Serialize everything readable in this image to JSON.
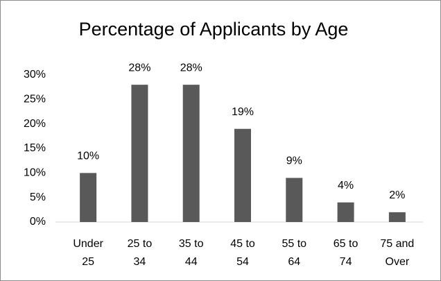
{
  "chart_data": {
    "type": "bar",
    "title": "Percentage of Applicants by Age",
    "categories": [
      "Under 25",
      "25 to 34",
      "35 to 44",
      "45 to 54",
      "55 to 64",
      "65 to 74",
      "75 and Over"
    ],
    "values": [
      10,
      28,
      28,
      19,
      9,
      4,
      2
    ],
    "value_labels": [
      "10%",
      "28%",
      "28%",
      "19%",
      "9%",
      "4%",
      "2%"
    ],
    "color": "#595959",
    "ylim": [
      0,
      30
    ],
    "yticks": [
      {
        "value": 0,
        "label": "0%"
      },
      {
        "value": 5,
        "label": "5%"
      },
      {
        "value": 10,
        "label": "10%"
      },
      {
        "value": 15,
        "label": "15%"
      },
      {
        "value": 20,
        "label": "20%"
      },
      {
        "value": 25,
        "label": "25%"
      },
      {
        "value": 30,
        "label": "30%"
      }
    ],
    "grid": false
  }
}
